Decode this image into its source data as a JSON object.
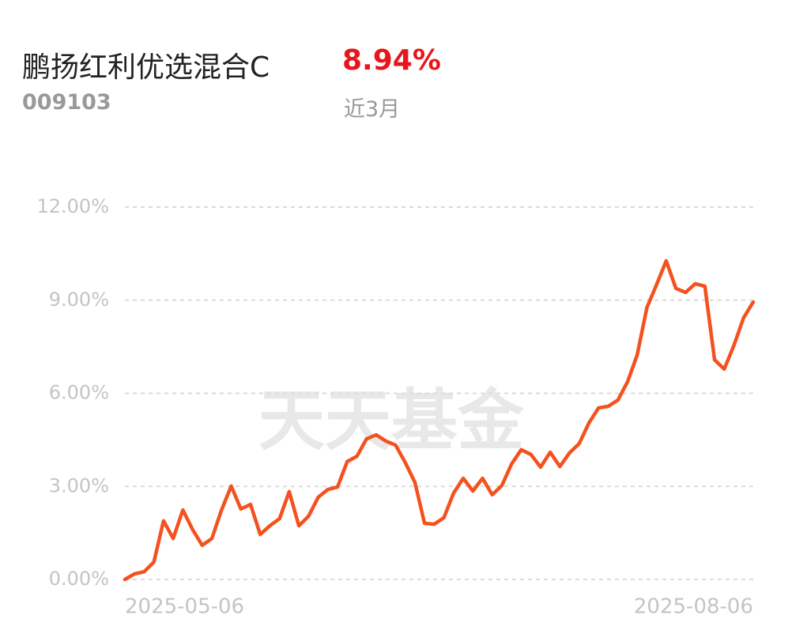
{
  "header": {
    "name": "鹏扬红利优选混合C",
    "return": "8.94%",
    "code": "009103",
    "period": "近3月"
  },
  "watermark": "天天基金",
  "chart_data": {
    "type": "line",
    "categories": [
      "2025-05-06",
      null,
      null,
      null,
      null,
      null,
      null,
      null,
      null,
      null,
      null,
      null,
      null,
      null,
      null,
      null,
      null,
      null,
      null,
      null,
      null,
      null,
      null,
      null,
      null,
      null,
      null,
      null,
      null,
      null,
      null,
      null,
      null,
      null,
      null,
      null,
      null,
      null,
      null,
      null,
      null,
      null,
      null,
      null,
      null,
      null,
      null,
      null,
      null,
      null,
      null,
      null,
      null,
      null,
      null,
      null,
      null,
      null,
      null,
      null,
      null,
      null,
      null,
      null,
      null,
      "2025-08-06"
    ],
    "series": [
      {
        "color": "#f4511e",
        "values": [
          0,
          0.18,
          0.25,
          0.56,
          1.89,
          1.32,
          2.24,
          1.61,
          1.1,
          1.32,
          2.24,
          3.01,
          2.27,
          2.42,
          1.45,
          1.73,
          1.96,
          2.83,
          1.73,
          2.04,
          2.65,
          2.9,
          2.98,
          3.8,
          3.97,
          4.53,
          4.66,
          4.46,
          4.33,
          3.77,
          3.13,
          1.81,
          1.78,
          1.99,
          2.78,
          3.26,
          2.85,
          3.26,
          2.73,
          3.03,
          3.72,
          4.18,
          4.03,
          3.62,
          4.1,
          3.64,
          4.08,
          4.38,
          5.04,
          5.53,
          5.58,
          5.78,
          6.37,
          7.24,
          8.76,
          9.5,
          10.27,
          9.38,
          9.25,
          9.53,
          9.45,
          7.08,
          6.78,
          7.54,
          8.43,
          8.94
        ]
      }
    ],
    "ylim": [
      0,
      12
    ],
    "yticks": [
      {
        "value": 0,
        "label": "0.00%"
      },
      {
        "value": 3,
        "label": "3.00%"
      },
      {
        "value": 6,
        "label": "6.00%"
      },
      {
        "value": 9,
        "label": "9.00%"
      },
      {
        "value": 12,
        "label": "12.00%"
      }
    ],
    "grid": true
  }
}
